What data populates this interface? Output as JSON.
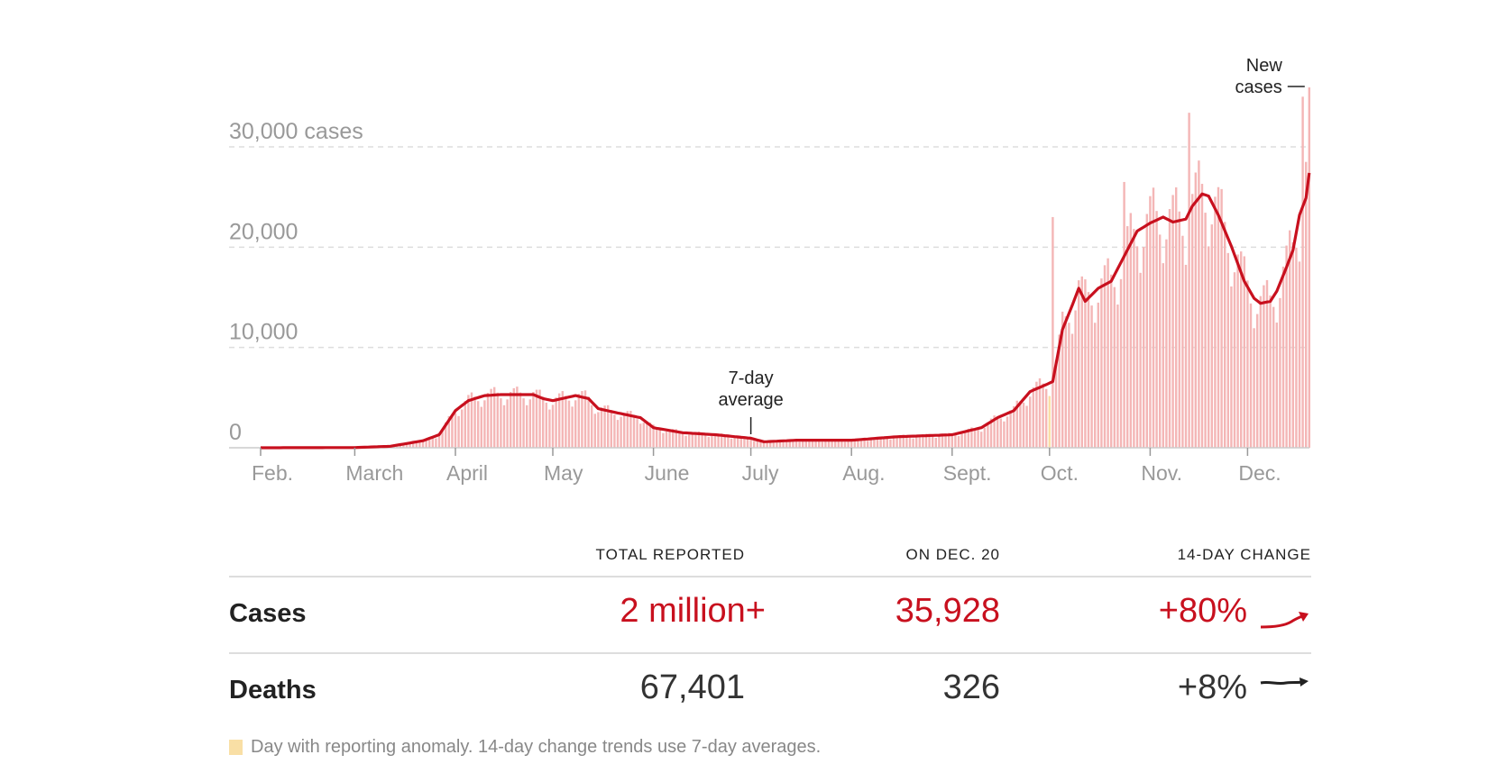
{
  "chart_data": {
    "type": "bar+line",
    "title": "",
    "ylabel": "cases",
    "ylim": [
      0,
      30000
    ],
    "yticks": [
      {
        "value": 0,
        "label": "0"
      },
      {
        "value": 10000,
        "label": "10,000"
      },
      {
        "value": 20000,
        "label": "20,000"
      },
      {
        "value": 30000,
        "label": "30,000 cases"
      }
    ],
    "x_start": "2020-02-01",
    "x_end": "2020-12-20",
    "xticks": [
      {
        "date": "2020-02-01",
        "label": "Feb."
      },
      {
        "date": "2020-03-01",
        "label": "March"
      },
      {
        "date": "2020-04-01",
        "label": "April"
      },
      {
        "date": "2020-05-01",
        "label": "May"
      },
      {
        "date": "2020-06-01",
        "label": "June"
      },
      {
        "date": "2020-07-01",
        "label": "July"
      },
      {
        "date": "2020-08-01",
        "label": "Aug."
      },
      {
        "date": "2020-09-01",
        "label": "Sept."
      },
      {
        "date": "2020-10-01",
        "label": "Oct."
      },
      {
        "date": "2020-11-01",
        "label": "Nov."
      },
      {
        "date": "2020-12-01",
        "label": "Dec."
      }
    ],
    "series": [
      {
        "name": "7-day average",
        "color": "#c8101e",
        "points": [
          [
            "2020-02-01",
            0
          ],
          [
            "2020-03-01",
            20
          ],
          [
            "2020-03-12",
            150
          ],
          [
            "2020-03-22",
            700
          ],
          [
            "2020-03-27",
            1300
          ],
          [
            "2020-04-01",
            3700
          ],
          [
            "2020-04-05",
            4700
          ],
          [
            "2020-04-10",
            5200
          ],
          [
            "2020-04-15",
            5300
          ],
          [
            "2020-04-25",
            5300
          ],
          [
            "2020-04-28",
            4900
          ],
          [
            "2020-05-01",
            4700
          ],
          [
            "2020-05-08",
            5200
          ],
          [
            "2020-05-12",
            4900
          ],
          [
            "2020-05-15",
            3900
          ],
          [
            "2020-05-22",
            3400
          ],
          [
            "2020-05-28",
            3000
          ],
          [
            "2020-06-01",
            2000
          ],
          [
            "2020-06-10",
            1500
          ],
          [
            "2020-06-20",
            1300
          ],
          [
            "2020-07-01",
            950
          ],
          [
            "2020-07-05",
            600
          ],
          [
            "2020-07-15",
            750
          ],
          [
            "2020-08-01",
            750
          ],
          [
            "2020-08-15",
            1100
          ],
          [
            "2020-09-01",
            1300
          ],
          [
            "2020-09-10",
            2000
          ],
          [
            "2020-09-15",
            3000
          ],
          [
            "2020-09-20",
            3700
          ],
          [
            "2020-09-25",
            5600
          ],
          [
            "2020-09-30",
            6300
          ],
          [
            "2020-10-02",
            6600
          ],
          [
            "2020-10-05",
            11800
          ],
          [
            "2020-10-08",
            14200
          ],
          [
            "2020-10-10",
            15900
          ],
          [
            "2020-10-12",
            14600
          ],
          [
            "2020-10-16",
            15900
          ],
          [
            "2020-10-20",
            16600
          ],
          [
            "2020-10-24",
            19100
          ],
          [
            "2020-10-28",
            21600
          ],
          [
            "2020-11-01",
            22400
          ],
          [
            "2020-11-05",
            23000
          ],
          [
            "2020-11-08",
            22500
          ],
          [
            "2020-11-12",
            22800
          ],
          [
            "2020-11-14",
            24100
          ],
          [
            "2020-11-17",
            25300
          ],
          [
            "2020-11-19",
            25100
          ],
          [
            "2020-11-22",
            23200
          ],
          [
            "2020-11-26",
            20100
          ],
          [
            "2020-11-30",
            16600
          ],
          [
            "2020-12-03",
            14900
          ],
          [
            "2020-12-05",
            14400
          ],
          [
            "2020-12-08",
            14600
          ],
          [
            "2020-12-10",
            15600
          ],
          [
            "2020-12-13",
            18000
          ],
          [
            "2020-12-15",
            19700
          ],
          [
            "2020-12-17",
            23200
          ],
          [
            "2020-12-19",
            24900
          ],
          [
            "2020-12-20",
            27400
          ]
        ]
      },
      {
        "name": "New cases",
        "color": "#f4b6b6",
        "note": "daily bars",
        "spikes": [
          [
            "2020-10-02",
            23000
          ],
          [
            "2020-10-24",
            26500
          ],
          [
            "2020-11-13",
            33400
          ],
          [
            "2020-12-18",
            35000
          ],
          [
            "2020-12-19",
            28500
          ],
          [
            "2020-12-20",
            35928
          ]
        ],
        "anomalies": [
          "2020-10-01"
        ]
      }
    ],
    "annotations": [
      {
        "text_lines": [
          "7-day",
          "average"
        ],
        "date": "2020-07-01"
      },
      {
        "text_lines": [
          "New",
          "cases"
        ],
        "date": "2020-12-20"
      }
    ],
    "anomaly_color": "#f9dfa5"
  },
  "table": {
    "headers": [
      "TOTAL REPORTED",
      "ON DEC. 20",
      "14-DAY CHANGE"
    ],
    "rows": [
      {
        "label": "Cases",
        "total": "2 million+",
        "on_day": "35,928",
        "change": "+80%",
        "trend": "up-steep"
      },
      {
        "label": "Deaths",
        "total": "67,401",
        "on_day": "326",
        "change": "+8%",
        "trend": "flat-up"
      }
    ]
  },
  "footnote": "Day with reporting anomaly. 14-day change trends use 7-day averages."
}
